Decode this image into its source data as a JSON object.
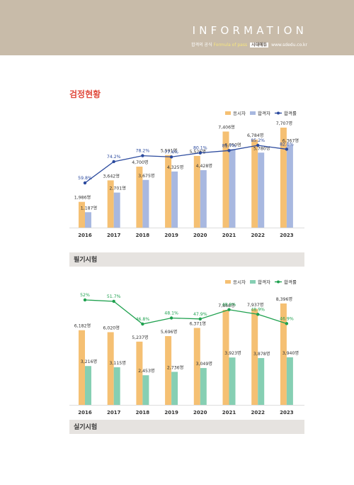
{
  "header": {
    "title": "INFORMATION",
    "subtitle_pre": "합격의 공식",
    "subtitle_accent": "Formula of pass",
    "subtitle_brand": "시대에듀",
    "subtitle_url": "www.sdedu.co.kr"
  },
  "section_title": "검정현황",
  "colors": {
    "applicant": "#f5c073",
    "pass1": "#a8b8e0",
    "rate1": "#2b4a9e",
    "pass2": "#86cfb3",
    "rate2": "#1fa14f"
  },
  "chart_data": [
    {
      "type": "bar",
      "caption": "필기시험",
      "categories": [
        "2016",
        "2017",
        "2018",
        "2019",
        "2020",
        "2021",
        "2022",
        "2023"
      ],
      "series": [
        {
          "name": "응시자",
          "values": [
            1986,
            3642,
            4700,
            5591,
            5526,
            7406,
            6784,
            7707
          ],
          "labels": [
            "1,986명",
            "3,642명",
            "4,700명",
            "5,591명",
            "5,526명",
            "7,406명",
            "6,784명",
            "7,707명"
          ]
        },
        {
          "name": "합격자",
          "values": [
            1187,
            2701,
            3675,
            4325,
            4428,
            6050,
            5780,
            6367
          ],
          "labels": [
            "1,187명",
            "2,701명",
            "3,675명",
            "4,325명",
            "4,428명",
            "6,050명",
            "5,780명",
            "6,367명"
          ]
        },
        {
          "name": "합격률",
          "type": "line",
          "values": [
            59.8,
            74.2,
            78.2,
            77.4,
            80.1,
            81.7,
            85.2,
            82.6
          ],
          "labels": [
            "59.8%",
            "74.2%",
            "78.2%",
            "77.4%",
            "80.1%",
            "81.7%",
            "85.2%",
            "82.6%"
          ]
        }
      ]
    },
    {
      "type": "bar",
      "caption": "실기시험",
      "categories": [
        "2016",
        "2017",
        "2018",
        "2019",
        "2020",
        "2021",
        "2022",
        "2023"
      ],
      "series": [
        {
          "name": "응시자",
          "values": [
            6182,
            6020,
            5237,
            5696,
            6371,
            7868,
            7937,
            8396
          ],
          "labels": [
            "6,182명",
            "6,020명",
            "5,237명",
            "5,696명",
            "6,371명",
            "7,868명",
            "7,937명",
            "8,396명"
          ]
        },
        {
          "name": "합격자",
          "values": [
            3216,
            3115,
            2453,
            2736,
            3049,
            3923,
            3878,
            3940
          ],
          "labels": [
            "3,216명",
            "3,115명",
            "2,453명",
            "2,736명",
            "3,049명",
            "3,923명",
            "3,878명",
            "3,940명"
          ]
        },
        {
          "name": "합격률",
          "type": "line",
          "values": [
            52,
            51.7,
            46.8,
            48.1,
            47.9,
            49.9,
            48.9,
            46.9
          ],
          "labels": [
            "52%",
            "51.7%",
            "46.8%",
            "48.1%",
            "47.9%",
            "49.9%",
            "48.9%",
            "46.9%"
          ]
        }
      ]
    }
  ]
}
